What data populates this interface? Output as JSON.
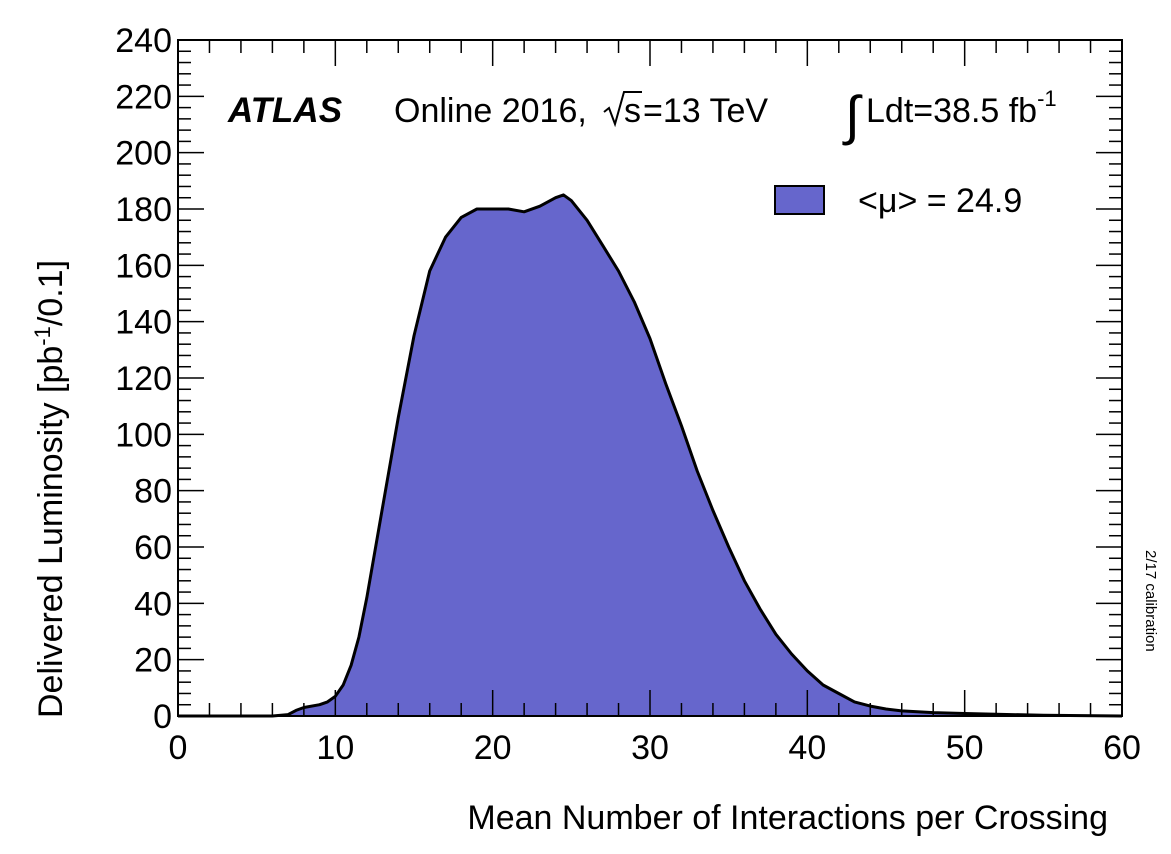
{
  "chart_data": {
    "type": "area",
    "xlabel": "Mean Number of Interactions per Crossing",
    "ylabel": "Delivered Luminosity [pb",
    "ylabel_sup": "-1",
    "ylabel_tail": "/0.1]",
    "xlim": [
      0,
      60
    ],
    "ylim": [
      0,
      240
    ],
    "x_ticks": [
      0,
      10,
      20,
      30,
      40,
      50,
      60
    ],
    "y_ticks": [
      0,
      20,
      40,
      60,
      80,
      100,
      120,
      140,
      160,
      180,
      200,
      220,
      240
    ],
    "x_tick_labels": [
      "0",
      "10",
      "20",
      "30",
      "40",
      "50",
      "60"
    ],
    "y_tick_labels": [
      "0",
      "20",
      "40",
      "60",
      "80",
      "100",
      "120",
      "140",
      "160",
      "180",
      "200",
      "220",
      "240"
    ],
    "fill_color": "#6666cc",
    "grid": false,
    "legend_position": "top-right",
    "series": [
      {
        "name": "<μ> = 24.9",
        "x": [
          0,
          6,
          7,
          7.5,
          8,
          9,
          9.5,
          10,
          10.5,
          11,
          11.5,
          12,
          13,
          14,
          15,
          16,
          17,
          18,
          19,
          20,
          21,
          22,
          23,
          24,
          24.5,
          25,
          26,
          27,
          28,
          29,
          30,
          31,
          32,
          33,
          34,
          35,
          36,
          37,
          38,
          39,
          40,
          41,
          42,
          43,
          44,
          45,
          46,
          48,
          50,
          52,
          55,
          60
        ],
        "y": [
          0,
          0,
          0.5,
          2,
          3,
          4,
          5,
          7,
          11,
          18,
          28,
          42,
          74,
          106,
          135,
          158,
          170,
          177,
          180,
          180,
          180,
          179,
          181,
          184,
          185,
          183,
          176,
          167,
          158,
          147,
          134,
          118,
          103,
          87,
          73,
          60,
          48,
          38,
          29,
          22,
          16,
          11,
          8,
          5,
          3.5,
          2.5,
          1.8,
          1.2,
          0.9,
          0.6,
          0.3,
          0
        ]
      }
    ],
    "annotations": {
      "experiment": "ATLAS",
      "run_text": "Online 2016,",
      "energy_s": "s",
      "energy_value": "=13 TeV",
      "integral_sign": "∫",
      "lumi_text": "Ldt=38.5 fb",
      "lumi_sup": "-1",
      "calibration": "2/17 calibration"
    }
  }
}
